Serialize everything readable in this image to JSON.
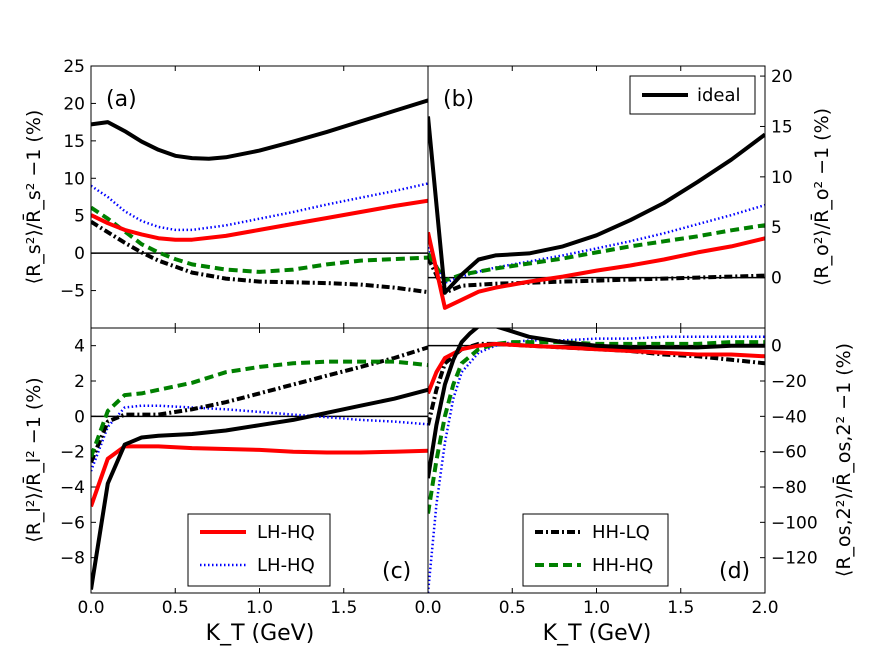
{
  "chart_data": [
    {
      "panel": "(a)",
      "type": "line",
      "ylabel": "⟨R_s²⟩/R̄_s² −1 (%)",
      "xlim": [
        0,
        2.0
      ],
      "ylim": [
        -10,
        25
      ],
      "yticks": [
        -5,
        0,
        5,
        10,
        15,
        20,
        25
      ],
      "hline": 0,
      "series": [
        {
          "name": "ideal",
          "style": "solid-black",
          "x": [
            0,
            0.1,
            0.2,
            0.3,
            0.4,
            0.5,
            0.6,
            0.7,
            0.8,
            1.0,
            1.2,
            1.4,
            1.6,
            1.8,
            2.0
          ],
          "values": [
            17.2,
            17.5,
            16.3,
            14.9,
            13.8,
            13.0,
            12.7,
            12.6,
            12.8,
            13.7,
            14.9,
            16.2,
            17.6,
            19.0,
            20.4
          ]
        },
        {
          "name": "LH-HQ",
          "style": "solid-red",
          "x": [
            0,
            0.1,
            0.2,
            0.3,
            0.4,
            0.5,
            0.6,
            0.8,
            1.0,
            1.2,
            1.4,
            1.6,
            1.8,
            2.0
          ],
          "values": [
            5.1,
            4.0,
            3.1,
            2.5,
            2.0,
            1.8,
            1.8,
            2.3,
            3.1,
            3.9,
            4.7,
            5.5,
            6.3,
            7.0
          ]
        },
        {
          "name": "LH-HQ",
          "style": "dotted-blue",
          "x": [
            0,
            0.1,
            0.2,
            0.3,
            0.4,
            0.5,
            0.6,
            0.8,
            1.0,
            1.2,
            1.4,
            1.6,
            1.8,
            2.0
          ],
          "values": [
            9.0,
            7.5,
            5.6,
            4.3,
            3.5,
            3.1,
            3.1,
            3.7,
            4.6,
            5.5,
            6.5,
            7.4,
            8.3,
            9.3
          ]
        },
        {
          "name": "HH-LQ",
          "style": "dashdot-black",
          "x": [
            0,
            0.1,
            0.2,
            0.3,
            0.4,
            0.5,
            0.6,
            0.8,
            1.0,
            1.2,
            1.4,
            1.6,
            1.8,
            2.0
          ],
          "values": [
            4.2,
            2.8,
            1.4,
            0.1,
            -1.0,
            -1.8,
            -2.6,
            -3.4,
            -3.8,
            -3.9,
            -4.0,
            -4.2,
            -4.6,
            -5.2
          ]
        },
        {
          "name": "HH-HQ",
          "style": "dashed-green",
          "x": [
            0,
            0.1,
            0.2,
            0.3,
            0.4,
            0.5,
            0.6,
            0.8,
            1.0,
            1.2,
            1.4,
            1.6,
            1.8,
            2.0
          ],
          "values": [
            6.1,
            4.6,
            2.9,
            1.2,
            0.1,
            -0.8,
            -1.5,
            -2.2,
            -2.5,
            -2.2,
            -1.5,
            -1.0,
            -0.8,
            -0.6
          ]
        }
      ]
    },
    {
      "panel": "(b)",
      "type": "line",
      "ylabel": "⟨R_o²⟩/R̄_o² −1 (%)",
      "xlim": [
        0,
        2.0
      ],
      "ylim": [
        -5,
        21
      ],
      "yticks": [
        0,
        5,
        10,
        15,
        20
      ],
      "hline": 0,
      "series": [
        {
          "name": "ideal",
          "style": "solid-black",
          "x": [
            0,
            0.1,
            0.2,
            0.3,
            0.4,
            0.5,
            0.6,
            0.8,
            1.0,
            1.2,
            1.4,
            1.6,
            1.8,
            2.0
          ],
          "values": [
            16.0,
            -1.5,
            0.3,
            1.8,
            2.2,
            2.3,
            2.4,
            3.1,
            4.2,
            5.7,
            7.4,
            9.5,
            11.7,
            14.2
          ]
        },
        {
          "name": "LH-HQ",
          "style": "solid-red",
          "x": [
            0,
            0.1,
            0.2,
            0.3,
            0.4,
            0.6,
            0.8,
            1.0,
            1.2,
            1.4,
            1.6,
            1.8,
            2.0
          ],
          "values": [
            4.5,
            -3.0,
            -2.2,
            -1.4,
            -1.0,
            -0.4,
            0.1,
            0.7,
            1.2,
            1.8,
            2.5,
            3.1,
            3.9
          ]
        },
        {
          "name": "LH-HQ",
          "style": "dotted-blue",
          "x": [
            0,
            0.1,
            0.2,
            0.3,
            0.4,
            0.6,
            0.8,
            1.0,
            1.2,
            1.4,
            1.6,
            1.8,
            2.0
          ],
          "values": [
            3.0,
            -0.5,
            0.1,
            0.6,
            1.0,
            1.6,
            2.2,
            2.9,
            3.6,
            4.4,
            5.3,
            6.2,
            7.2
          ]
        },
        {
          "name": "HH-LQ",
          "style": "dashdot-black",
          "x": [
            0,
            0.1,
            0.2,
            0.4,
            0.6,
            0.8,
            1.0,
            1.2,
            1.4,
            1.6,
            1.8,
            2.0
          ],
          "values": [
            2.0,
            -1.5,
            -0.8,
            -0.6,
            -0.5,
            -0.4,
            -0.3,
            -0.2,
            -0.1,
            0.0,
            0.1,
            0.2
          ]
        },
        {
          "name": "HH-HQ",
          "style": "dashed-green",
          "x": [
            0,
            0.1,
            0.2,
            0.3,
            0.4,
            0.6,
            0.8,
            1.0,
            1.2,
            1.4,
            1.6,
            1.8,
            2.0
          ],
          "values": [
            2.4,
            -0.3,
            0.3,
            0.6,
            0.9,
            1.4,
            1.9,
            2.5,
            3.1,
            3.6,
            4.1,
            4.7,
            5.2
          ]
        }
      ]
    },
    {
      "panel": "(c)",
      "type": "line",
      "ylabel": "⟨R_l²⟩/R̄_l² −1 (%)",
      "xlim": [
        0,
        2.0
      ],
      "ylim": [
        -10,
        5
      ],
      "yticks": [
        -8,
        -6,
        -4,
        -2,
        0,
        2,
        4
      ],
      "hline": 0,
      "series": [
        {
          "name": "ideal",
          "style": "solid-black",
          "x": [
            0,
            0.1,
            0.2,
            0.3,
            0.4,
            0.6,
            0.8,
            1.0,
            1.2,
            1.4,
            1.6,
            1.8,
            2.0
          ],
          "values": [
            -9.8,
            -3.8,
            -1.6,
            -1.2,
            -1.1,
            -1.0,
            -0.8,
            -0.5,
            -0.2,
            0.2,
            0.6,
            1.0,
            1.5
          ]
        },
        {
          "name": "LH-HQ",
          "style": "solid-red",
          "x": [
            0,
            0.1,
            0.2,
            0.4,
            0.6,
            0.8,
            1.0,
            1.2,
            1.4,
            1.6,
            1.8,
            2.0
          ],
          "values": [
            -5.1,
            -2.4,
            -1.7,
            -1.7,
            -1.8,
            -1.85,
            -1.9,
            -2.0,
            -2.05,
            -2.05,
            -2.0,
            -1.95
          ]
        },
        {
          "name": "LH-HQ",
          "style": "dotted-blue",
          "x": [
            0,
            0.1,
            0.2,
            0.3,
            0.4,
            0.6,
            0.8,
            1.0,
            1.2,
            1.4,
            1.6,
            1.8,
            2.0
          ],
          "values": [
            -3.1,
            -0.6,
            0.5,
            0.6,
            0.6,
            0.5,
            0.4,
            0.25,
            0.1,
            -0.05,
            -0.2,
            -0.3,
            -0.45
          ]
        },
        {
          "name": "HH-LQ",
          "style": "dashdot-black",
          "x": [
            0,
            0.1,
            0.2,
            0.3,
            0.4,
            0.6,
            0.8,
            1.0,
            1.2,
            1.4,
            1.6,
            1.8,
            2.0
          ],
          "values": [
            -2.6,
            -0.3,
            0.1,
            0.1,
            0.1,
            0.4,
            0.8,
            1.3,
            1.8,
            2.3,
            2.8,
            3.3,
            3.9
          ]
        },
        {
          "name": "HH-HQ",
          "style": "dashed-green",
          "x": [
            0,
            0.1,
            0.2,
            0.3,
            0.4,
            0.6,
            0.8,
            1.0,
            1.2,
            1.4,
            1.6,
            1.8,
            2.0
          ],
          "values": [
            -2.3,
            0.3,
            1.2,
            1.3,
            1.5,
            1.9,
            2.5,
            2.8,
            3.0,
            3.1,
            3.1,
            3.1,
            2.9
          ]
        }
      ]
    },
    {
      "panel": "(d)",
      "type": "line",
      "ylabel": "⟨R_os,2²⟩/R̄_os,2² −1 (%)",
      "xlim": [
        0,
        2.0
      ],
      "ylim": [
        -140,
        10
      ],
      "yticks": [
        -120,
        -100,
        -80,
        -60,
        -40,
        -20,
        0
      ],
      "hline": 0,
      "series": [
        {
          "name": "ideal",
          "style": "solid-black",
          "x": [
            0,
            0.05,
            0.1,
            0.15,
            0.2,
            0.25,
            0.3,
            0.4,
            0.5,
            0.6,
            0.8,
            1.0,
            1.2,
            1.4,
            1.6,
            1.8,
            2.0
          ],
          "values": [
            -75,
            -45,
            -22,
            -8,
            2,
            7,
            11,
            11,
            8,
            5,
            2,
            0,
            -1,
            -1,
            -1,
            0,
            0
          ]
        },
        {
          "name": "LH-HQ",
          "style": "solid-red",
          "x": [
            0,
            0.05,
            0.1,
            0.2,
            0.3,
            0.4,
            0.6,
            0.8,
            1.0,
            1.2,
            1.4,
            1.6,
            1.8,
            2.0
          ],
          "values": [
            -27,
            -15,
            -7,
            -2,
            0,
            1,
            0,
            -1,
            -2,
            -3,
            -4,
            -5,
            -5,
            -6
          ]
        },
        {
          "name": "LH-HQ",
          "style": "dotted-blue",
          "x": [
            0,
            0.05,
            0.1,
            0.15,
            0.2,
            0.3,
            0.4,
            0.5,
            0.6,
            0.8,
            1.0,
            1.2,
            1.4,
            1.6,
            1.8,
            2.0
          ],
          "values": [
            -140,
            -90,
            -55,
            -30,
            -15,
            -4,
            0,
            2,
            3,
            3,
            4,
            4,
            5,
            5,
            5,
            5
          ]
        },
        {
          "name": "HH-LQ",
          "style": "dashdot-black",
          "x": [
            0,
            0.05,
            0.1,
            0.2,
            0.3,
            0.4,
            0.6,
            0.8,
            1.0,
            1.2,
            1.4,
            1.6,
            1.8,
            2.0
          ],
          "values": [
            -45,
            -25,
            -10,
            -2,
            1,
            1,
            0,
            -1,
            -2,
            -3,
            -5,
            -6,
            -8,
            -10
          ]
        },
        {
          "name": "HH-HQ",
          "style": "dashed-green",
          "x": [
            0,
            0.05,
            0.1,
            0.15,
            0.2,
            0.3,
            0.4,
            0.5,
            0.6,
            0.8,
            1.0,
            1.2,
            1.4,
            1.6,
            1.8,
            2.0
          ],
          "values": [
            -95,
            -65,
            -40,
            -22,
            -10,
            -2,
            1,
            2,
            2,
            2,
            1,
            1,
            1,
            1,
            2,
            2
          ]
        }
      ]
    }
  ],
  "xlabel": "K_T (GeV)",
  "xticks_left": [
    "0.0",
    "0.5",
    "1.0",
    "1.5",
    "0.0"
  ],
  "xticks_right": [
    "0.0",
    "0.5",
    "1.0",
    "1.5",
    "2.0"
  ],
  "legends": {
    "b": [
      {
        "label": "ideal",
        "style": "solid-black"
      }
    ],
    "c": [
      {
        "label": "LH-HQ",
        "style": "solid-red"
      },
      {
        "label": "LH-HQ",
        "style": "dotted-blue"
      }
    ],
    "d": [
      {
        "label": "HH-LQ",
        "style": "dashdot-black"
      },
      {
        "label": "HH-HQ",
        "style": "dashed-green"
      }
    ]
  },
  "colors": {
    "ideal": "#000000",
    "red": "#ff0000",
    "blue": "#0000ff",
    "green": "#008000"
  }
}
